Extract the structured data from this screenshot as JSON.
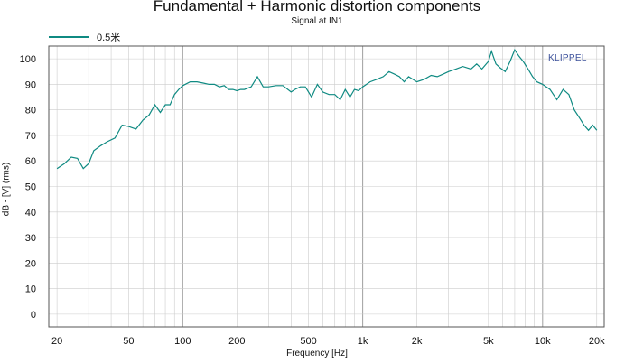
{
  "chart_data": {
    "type": "line",
    "title": "Fundamental + Harmonic distortion components",
    "subtitle": "Signal at IN1",
    "xlabel": "Frequency [Hz]",
    "ylabel": "dB - [V]  (rms)",
    "xscale": "log",
    "xlim": [
      18,
      22000
    ],
    "ylim": [
      -5,
      105
    ],
    "x_ticks": [
      20,
      50,
      100,
      200,
      500,
      1000,
      2000,
      5000,
      10000,
      20000
    ],
    "x_tick_labels": [
      "20",
      "50",
      "100",
      "200",
      "500",
      "1k",
      "2k",
      "5k",
      "10k",
      "20k"
    ],
    "y_ticks": [
      0,
      10,
      20,
      30,
      40,
      50,
      60,
      70,
      80,
      90,
      100
    ],
    "y_tick_labels": [
      "0",
      "10",
      "20",
      "30",
      "40",
      "50",
      "60",
      "70",
      "80",
      "90",
      "100"
    ],
    "grid": true,
    "legend_position": "top-left",
    "brand_label": "KLIPPEL",
    "colors": {
      "series": "#0f8a82",
      "grid": "#cccccc",
      "axis": "#555555",
      "brand": "#3a4f9a"
    },
    "series": [
      {
        "name": "0.5米",
        "x": [
          20,
          22,
          24,
          26,
          28,
          30,
          32,
          35,
          38,
          42,
          46,
          50,
          55,
          60,
          65,
          70,
          75,
          80,
          85,
          90,
          95,
          100,
          110,
          120,
          130,
          140,
          150,
          160,
          170,
          180,
          190,
          200,
          210,
          220,
          240,
          260,
          280,
          300,
          330,
          360,
          400,
          420,
          450,
          480,
          520,
          560,
          600,
          650,
          700,
          750,
          800,
          850,
          900,
          950,
          1000,
          1100,
          1200,
          1300,
          1400,
          1500,
          1600,
          1700,
          1800,
          2000,
          2200,
          2400,
          2600,
          2800,
          3000,
          3300,
          3600,
          4000,
          4300,
          4600,
          5000,
          5200,
          5500,
          5800,
          6200,
          6600,
          7000,
          7400,
          7800,
          8300,
          8800,
          9300,
          10000,
          11000,
          12000,
          13000,
          14000,
          15000,
          16000,
          17000,
          18000,
          19000,
          20000
        ],
        "y": [
          57,
          59,
          61.5,
          61,
          57,
          59,
          64,
          66,
          67.5,
          69,
          74,
          73.5,
          72.5,
          76,
          78,
          82,
          79,
          82,
          82,
          86,
          88,
          89.5,
          91,
          91,
          90.5,
          90,
          90,
          89,
          89.5,
          88,
          88,
          87.5,
          88,
          88,
          89,
          93,
          89,
          89,
          89.5,
          89.5,
          87,
          88,
          89,
          89,
          85,
          90,
          87,
          86,
          86,
          84,
          88,
          85,
          88,
          87.5,
          89,
          91,
          92,
          93,
          95,
          94,
          93,
          91,
          93,
          91,
          92,
          93.5,
          93,
          94,
          95,
          96,
          97,
          96,
          98,
          96,
          99,
          103,
          98,
          96.5,
          95,
          99,
          103.5,
          101,
          99,
          96,
          93,
          91,
          90,
          88,
          84,
          88,
          86,
          80,
          77,
          74,
          72,
          74,
          72
        ]
      }
    ]
  }
}
